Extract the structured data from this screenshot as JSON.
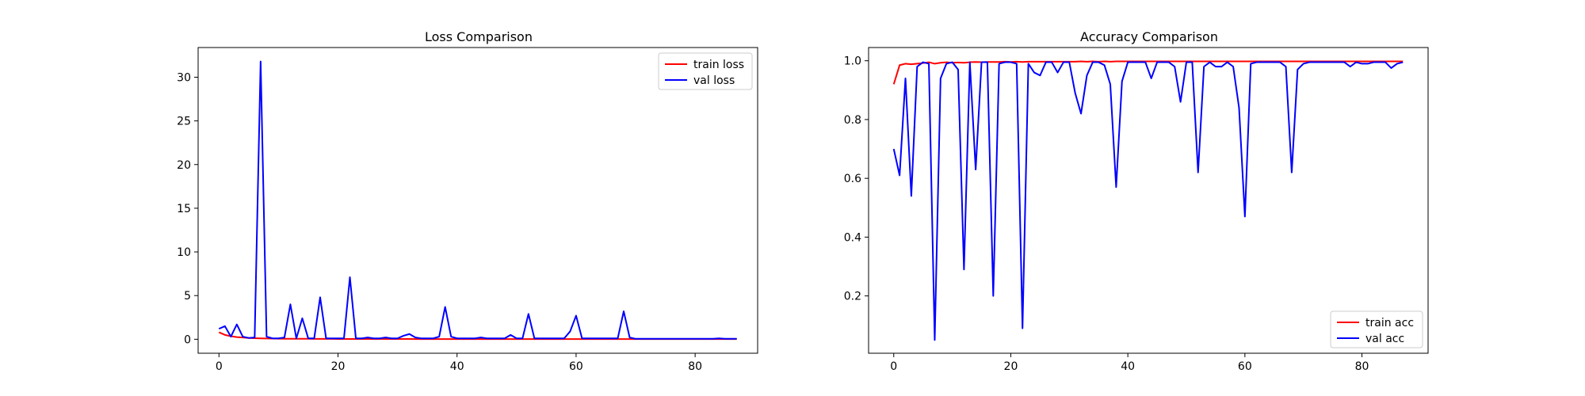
{
  "chart_data": [
    {
      "type": "line",
      "title": "Loss Comparison",
      "xlabel": "",
      "ylabel": "",
      "xlim": [
        -3.5,
        90.5
      ],
      "ylim": [
        -1.6,
        33.4
      ],
      "xticks": [
        0,
        20,
        40,
        60,
        80
      ],
      "yticks": [
        0,
        5,
        10,
        15,
        20,
        25,
        30
      ],
      "grid": false,
      "legend_position": "top-right",
      "series": [
        {
          "name": "train loss",
          "color": "#ff0000",
          "x": [
            0,
            1,
            2,
            3,
            4,
            5,
            6,
            7,
            8,
            9,
            10,
            11,
            12,
            13,
            14,
            15,
            16,
            17,
            18,
            19,
            20,
            21,
            22,
            23,
            24,
            25,
            26,
            27,
            28,
            29,
            30,
            31,
            32,
            33,
            34,
            35,
            36,
            37,
            38,
            39,
            40,
            41,
            42,
            43,
            44,
            45,
            46,
            47,
            48,
            49,
            50,
            51,
            52,
            53,
            54,
            55,
            56,
            57,
            58,
            59,
            60,
            61,
            62,
            63,
            64,
            65,
            66,
            67,
            68,
            69,
            70,
            71,
            72,
            73,
            74,
            75,
            76,
            77,
            78,
            79,
            80,
            81,
            82,
            83,
            84,
            85,
            86,
            87
          ],
          "values": [
            0.8,
            0.5,
            0.35,
            0.25,
            0.2,
            0.15,
            0.12,
            0.1,
            0.09,
            0.08,
            0.07,
            0.06,
            0.06,
            0.05,
            0.05,
            0.05,
            0.04,
            0.04,
            0.04,
            0.04,
            0.03,
            0.03,
            0.03,
            0.03,
            0.03,
            0.03,
            0.03,
            0.03,
            0.03,
            0.03,
            0.03,
            0.03,
            0.03,
            0.02,
            0.02,
            0.02,
            0.02,
            0.02,
            0.02,
            0.02,
            0.02,
            0.02,
            0.02,
            0.02,
            0.02,
            0.02,
            0.02,
            0.02,
            0.02,
            0.02,
            0.02,
            0.02,
            0.02,
            0.02,
            0.02,
            0.02,
            0.02,
            0.02,
            0.02,
            0.02,
            0.02,
            0.02,
            0.02,
            0.02,
            0.02,
            0.02,
            0.02,
            0.02,
            0.02,
            0.02,
            0.02,
            0.02,
            0.02,
            0.02,
            0.02,
            0.02,
            0.02,
            0.02,
            0.02,
            0.02,
            0.02,
            0.02,
            0.02,
            0.02,
            0.02,
            0.02,
            0.02,
            0.02
          ]
        },
        {
          "name": "val loss",
          "color": "#0000ff",
          "x": [
            0,
            1,
            2,
            3,
            4,
            5,
            6,
            7,
            8,
            9,
            10,
            11,
            12,
            13,
            14,
            15,
            16,
            17,
            18,
            19,
            20,
            21,
            22,
            23,
            24,
            25,
            26,
            27,
            28,
            29,
            30,
            31,
            32,
            33,
            34,
            35,
            36,
            37,
            38,
            39,
            40,
            41,
            42,
            43,
            44,
            45,
            46,
            47,
            48,
            49,
            50,
            51,
            52,
            53,
            54,
            55,
            56,
            57,
            58,
            59,
            60,
            61,
            62,
            63,
            64,
            65,
            66,
            67,
            68,
            69,
            70,
            71,
            72,
            73,
            74,
            75,
            76,
            77,
            78,
            79,
            80,
            81,
            82,
            83,
            84,
            85,
            86,
            87
          ],
          "values": [
            1.2,
            1.5,
            0.3,
            1.7,
            0.3,
            0.15,
            0.2,
            31.8,
            0.3,
            0.1,
            0.1,
            0.2,
            4.0,
            0.1,
            2.4,
            0.1,
            0.1,
            4.8,
            0.1,
            0.1,
            0.1,
            0.1,
            7.1,
            0.1,
            0.1,
            0.2,
            0.1,
            0.1,
            0.2,
            0.1,
            0.1,
            0.4,
            0.6,
            0.2,
            0.1,
            0.1,
            0.1,
            0.3,
            3.7,
            0.3,
            0.1,
            0.1,
            0.1,
            0.1,
            0.2,
            0.1,
            0.1,
            0.1,
            0.1,
            0.5,
            0.1,
            0.1,
            2.9,
            0.1,
            0.1,
            0.1,
            0.1,
            0.1,
            0.1,
            0.9,
            2.7,
            0.1,
            0.1,
            0.1,
            0.1,
            0.1,
            0.1,
            0.1,
            3.2,
            0.2,
            0.05,
            0.05,
            0.05,
            0.05,
            0.05,
            0.05,
            0.05,
            0.05,
            0.05,
            0.05,
            0.05,
            0.05,
            0.05,
            0.05,
            0.1,
            0.05,
            0.05,
            0.05
          ]
        }
      ]
    },
    {
      "type": "line",
      "title": "Accuracy Comparison",
      "xlabel": "",
      "ylabel": "",
      "xlim": [
        -4.3,
        91.3
      ],
      "ylim": [
        0.005,
        1.045
      ],
      "xticks": [
        0,
        20,
        40,
        60,
        80
      ],
      "yticks": [
        0.2,
        0.4,
        0.6,
        0.8,
        1.0
      ],
      "ytick_labels": [
        "0.2",
        "0.4",
        "0.6",
        "0.8",
        "1.0"
      ],
      "grid": false,
      "legend_position": "bottom-right",
      "series": [
        {
          "name": "train acc",
          "color": "#ff0000",
          "x": [
            0,
            1,
            2,
            3,
            4,
            5,
            6,
            7,
            8,
            9,
            10,
            11,
            12,
            13,
            14,
            15,
            16,
            17,
            18,
            19,
            20,
            21,
            22,
            23,
            24,
            25,
            26,
            27,
            28,
            29,
            30,
            31,
            32,
            33,
            34,
            35,
            36,
            37,
            38,
            39,
            40,
            41,
            42,
            43,
            44,
            45,
            46,
            47,
            48,
            49,
            50,
            51,
            52,
            53,
            54,
            55,
            56,
            57,
            58,
            59,
            60,
            61,
            62,
            63,
            64,
            65,
            66,
            67,
            68,
            69,
            70,
            71,
            72,
            73,
            74,
            75,
            76,
            77,
            78,
            79,
            80,
            81,
            82,
            83,
            84,
            85,
            86,
            87
          ],
          "values": [
            0.92,
            0.985,
            0.99,
            0.988,
            0.99,
            0.992,
            0.995,
            0.99,
            0.993,
            0.995,
            0.993,
            0.994,
            0.993,
            0.995,
            0.996,
            0.995,
            0.996,
            0.996,
            0.996,
            0.997,
            0.996,
            0.997,
            0.996,
            0.997,
            0.997,
            0.997,
            0.997,
            0.997,
            0.997,
            0.997,
            0.997,
            0.997,
            0.998,
            0.997,
            0.998,
            0.997,
            0.998,
            0.997,
            0.998,
            0.998,
            0.998,
            0.998,
            0.998,
            0.998,
            0.998,
            0.998,
            0.998,
            0.998,
            0.998,
            0.998,
            0.998,
            0.998,
            0.998,
            0.998,
            0.998,
            0.998,
            0.998,
            0.998,
            0.998,
            0.998,
            0.998,
            0.998,
            0.998,
            0.998,
            0.998,
            0.998,
            0.998,
            0.998,
            0.998,
            0.998,
            0.998,
            0.998,
            0.998,
            0.998,
            0.998,
            0.998,
            0.998,
            0.998,
            0.998,
            0.998,
            0.998,
            0.998,
            0.998,
            0.998,
            0.998,
            0.998,
            0.998,
            0.998
          ]
        },
        {
          "name": "val acc",
          "color": "#0000ff",
          "x": [
            0,
            1,
            2,
            3,
            4,
            5,
            6,
            7,
            8,
            9,
            10,
            11,
            12,
            13,
            14,
            15,
            16,
            17,
            18,
            19,
            20,
            21,
            22,
            23,
            24,
            25,
            26,
            27,
            28,
            29,
            30,
            31,
            32,
            33,
            34,
            35,
            36,
            37,
            38,
            39,
            40,
            41,
            42,
            43,
            44,
            45,
            46,
            47,
            48,
            49,
            50,
            51,
            52,
            53,
            54,
            55,
            56,
            57,
            58,
            59,
            60,
            61,
            62,
            63,
            64,
            65,
            66,
            67,
            68,
            69,
            70,
            71,
            72,
            73,
            74,
            75,
            76,
            77,
            78,
            79,
            80,
            81,
            82,
            83,
            84,
            85,
            86,
            87
          ],
          "values": [
            0.7,
            0.61,
            0.94,
            0.54,
            0.98,
            0.995,
            0.99,
            0.05,
            0.94,
            0.99,
            0.995,
            0.97,
            0.29,
            0.995,
            0.63,
            0.995,
            0.995,
            0.2,
            0.99,
            0.995,
            0.995,
            0.99,
            0.09,
            0.99,
            0.96,
            0.95,
            0.995,
            0.995,
            0.96,
            0.995,
            0.995,
            0.89,
            0.82,
            0.95,
            0.995,
            0.995,
            0.985,
            0.92,
            0.57,
            0.93,
            0.995,
            0.995,
            0.995,
            0.995,
            0.94,
            0.995,
            0.995,
            0.995,
            0.98,
            0.86,
            0.995,
            0.995,
            0.62,
            0.98,
            0.995,
            0.98,
            0.98,
            0.995,
            0.98,
            0.84,
            0.47,
            0.99,
            0.995,
            0.995,
            0.995,
            0.995,
            0.995,
            0.98,
            0.62,
            0.97,
            0.99,
            0.995,
            0.995,
            0.995,
            0.995,
            0.995,
            0.995,
            0.995,
            0.98,
            0.995,
            0.99,
            0.99,
            0.995,
            0.995,
            0.995,
            0.975,
            0.99,
            0.995
          ]
        }
      ]
    }
  ]
}
